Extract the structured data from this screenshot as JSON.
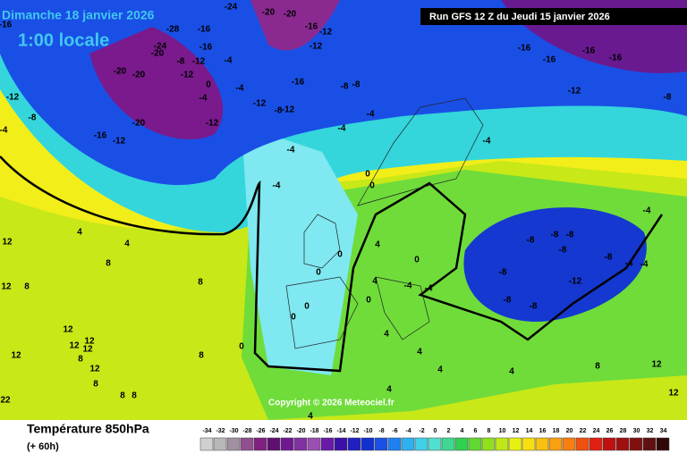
{
  "header": {
    "date": "Dimanche 18 janvier 2026",
    "local_time": "1:00 locale",
    "run": "Run GFS 12 Z du Jeudi 15 janvier 2026"
  },
  "copyright": "Copyright © 2026 Meteociel.fr",
  "legend": {
    "title": "Température 850hPa",
    "lead": "(+ 60h)",
    "scale": [
      -34,
      -32,
      -30,
      -28,
      -26,
      -24,
      -22,
      -20,
      -18,
      -16,
      -14,
      -12,
      -10,
      -8,
      -6,
      -4,
      -2,
      0,
      2,
      4,
      6,
      8,
      10,
      12,
      14,
      16,
      18,
      20,
      22,
      24,
      26,
      28,
      30,
      32,
      34
    ]
  },
  "map_labels": [
    "-16",
    "-24",
    "-20",
    "-20",
    "-16",
    "-16",
    "-28",
    "-24",
    "-20",
    "-8",
    "-12",
    "-4",
    "-12",
    "-20",
    "-20",
    "0",
    "-4",
    "-4",
    "-12",
    "-8",
    "-12",
    "-16",
    "-12",
    "-16",
    "-12",
    "-8",
    "-8",
    "-4",
    "-4",
    "-12",
    "-8",
    "-20",
    "-12",
    "-16",
    "-12",
    "-4",
    "-4",
    "-4",
    "0",
    "0",
    "-4",
    "-16",
    "-16",
    "-16",
    "-16",
    "-16",
    "-12",
    "-8",
    "-4",
    "-8",
    "-8",
    "-8",
    "-8",
    "-8",
    "-4",
    "-4",
    "-8",
    "-8",
    "-8",
    "-12",
    "-4",
    "-4",
    "4",
    "8",
    "4",
    "12",
    "12",
    "8",
    "12",
    "12",
    "12",
    "12",
    "8",
    "12",
    "12",
    "8",
    "8",
    "4",
    "0",
    "0",
    "0",
    "0",
    "0",
    "4",
    "0",
    "0",
    "4",
    "4",
    "4",
    "4",
    "4",
    "4",
    "8",
    "12",
    "12",
    "8",
    "8",
    "8",
    "22"
  ]
}
